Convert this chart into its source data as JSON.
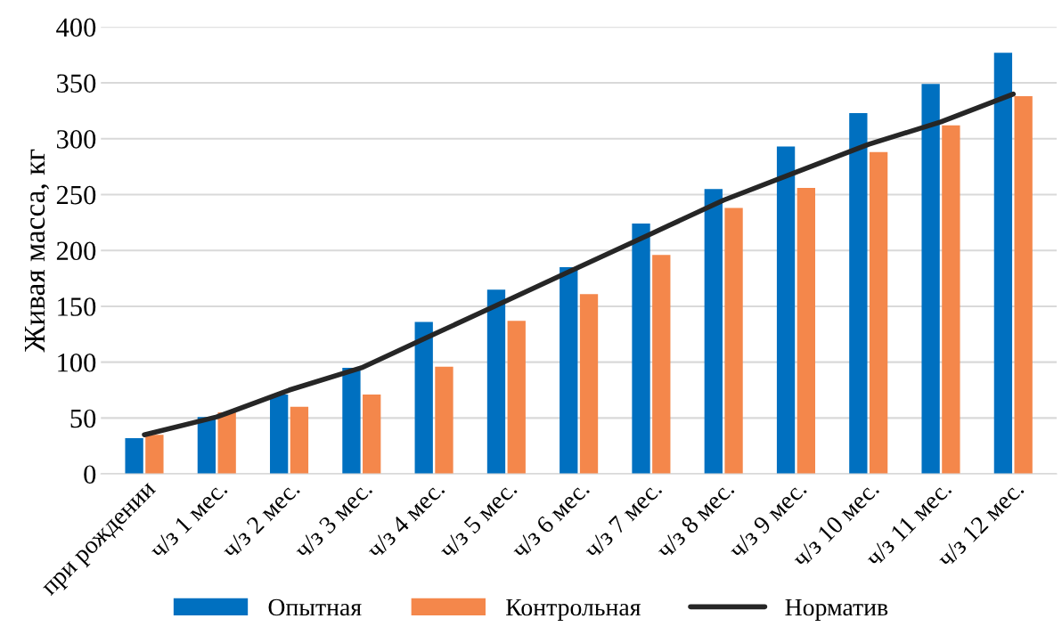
{
  "chart_data": {
    "type": "bar",
    "ylabel": "Живая масса, кг",
    "categories": [
      "при рождении",
      "ч/з 1 мес.",
      "ч/з 2 мес.",
      "ч/з 3 мес.",
      "ч/з 4 мес.",
      "ч/з 5 мес.",
      "ч/з 6 мес.",
      "ч/з 7 мес.",
      "ч/з 8 мес.",
      "ч/з 9 мес.",
      "ч/з 10 мес.",
      "ч/з 11 мес.",
      "ч/з 12 мес."
    ],
    "series": [
      {
        "name": "Опытная",
        "color": "#0070c0",
        "values": [
          32,
          51,
          71,
          95,
          136,
          165,
          185,
          224,
          255,
          293,
          323,
          349,
          377
        ]
      },
      {
        "name": "Контрольная",
        "color": "#f4874b",
        "values": [
          35,
          55,
          60,
          71,
          96,
          137,
          161,
          196,
          238,
          256,
          288,
          312,
          338
        ]
      },
      {
        "name": "Норматив",
        "type": "line",
        "color": "#262626",
        "values": [
          35,
          51,
          75,
          95,
          125,
          155,
          185,
          215,
          245,
          270,
          295,
          315,
          340
        ]
      }
    ],
    "ylim": [
      0,
      400
    ],
    "yticks": [
      0,
      50,
      100,
      150,
      200,
      250,
      300,
      350,
      400
    ],
    "grid": "y",
    "legend": "bottom"
  }
}
